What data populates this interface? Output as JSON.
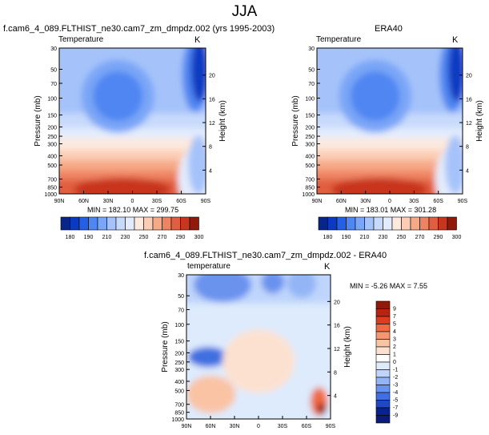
{
  "header": {
    "title": "JJA"
  },
  "chart_data": [
    {
      "type": "heatmap",
      "title": "f.cam6_4_089.FLTHIST_ne30.cam7_zm_dmpdz.002 (yrs 1995-2003)",
      "left_label": "Temperature",
      "right_label": "K",
      "xlabel": "",
      "ylabel": "Pressure (mb)",
      "y2label": "Height (km)",
      "x_ticks": [
        "90N",
        "60N",
        "30N",
        "0",
        "30S",
        "60S",
        "90S"
      ],
      "y_ticks": [
        1000,
        850,
        700,
        500,
        400,
        300,
        250,
        200,
        150,
        100,
        70,
        50,
        30
      ],
      "y2_ticks": [
        4,
        8,
        12,
        16,
        20
      ],
      "stats": "MIN = 182.10   MAX = 299.75",
      "min": 182.1,
      "max": 299.75,
      "colorbar": [
        "180",
        "190",
        "210",
        "230",
        "250",
        "270",
        "290",
        "300"
      ]
    },
    {
      "type": "heatmap",
      "title": "ERA40",
      "left_label": "Temperature",
      "right_label": "K",
      "xlabel": "",
      "ylabel": "Pressure (mb)",
      "y2label": "Height (km)",
      "x_ticks": [
        "90N",
        "60N",
        "30N",
        "0",
        "30S",
        "60S",
        "90S"
      ],
      "y_ticks": [
        1000,
        850,
        700,
        500,
        400,
        300,
        250,
        200,
        150,
        100,
        70,
        50,
        30
      ],
      "y2_ticks": [
        4,
        8,
        12,
        16,
        20
      ],
      "stats": "MIN = 183.01   MAX = 301.28",
      "min": 183.01,
      "max": 301.28,
      "colorbar": [
        "180",
        "190",
        "210",
        "230",
        "250",
        "270",
        "290",
        "300"
      ]
    },
    {
      "type": "heatmap",
      "title": "f.cam6_4_089.FLTHIST_ne30.cam7_zm_dmpdz.002 - ERA40",
      "left_label": "temperature",
      "right_label": "K",
      "xlabel": "",
      "ylabel": "Pressure (mb)",
      "y2label": "Height (km)",
      "x_ticks": [
        "90N",
        "60N",
        "30N",
        "0",
        "30S",
        "60S",
        "90S"
      ],
      "y_ticks": [
        1000,
        850,
        700,
        500,
        400,
        300,
        250,
        200,
        150,
        100,
        70,
        50,
        30
      ],
      "y2_ticks": [
        4,
        8,
        12,
        16,
        20
      ],
      "stats": "MIN =  -5.26   MAX =   7.55",
      "min": -5.26,
      "max": 7.55,
      "colorbar": [
        "9",
        "7",
        "5",
        "4",
        "3",
        "2",
        "1",
        "0",
        "-1",
        "-2",
        "-3",
        "-4",
        "-5",
        "-7",
        "-9"
      ]
    }
  ],
  "colors": {
    "abs_scale": [
      "#08268a",
      "#0a3ac2",
      "#2360e6",
      "#4f86f2",
      "#7aa6f7",
      "#a5c3fa",
      "#c8dafc",
      "#e3ecfd",
      "#fde9de",
      "#fbcdb4",
      "#f6a987",
      "#ee8362",
      "#e15e40",
      "#c8361f",
      "#8f1a0c"
    ],
    "diff_scale": [
      "#8f1a0c",
      "#b82312",
      "#dc3d1f",
      "#f06a43",
      "#f6966e",
      "#fac3a4",
      "#fde1d0",
      "#ffffff",
      "#deebfd",
      "#bfd5fb",
      "#93b5f6",
      "#6a93ee",
      "#3f6fe0",
      "#2047c4",
      "#0a2290"
    ]
  }
}
